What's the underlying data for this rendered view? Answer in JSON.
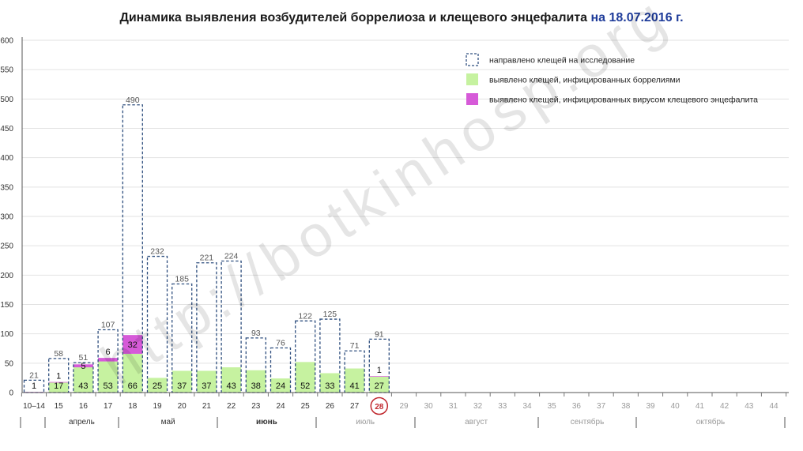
{
  "header": {
    "title_main": "Динамика выявления возбудителей боррелиоза и клещевого энцефалита",
    "title_date": "на 18.07.2016 г."
  },
  "watermark": "http://botkinhosp.org",
  "colors": {
    "total_border": "#2f4f7f",
    "borrelia": "#c6f2a0",
    "encephalitis": "#d65ad8",
    "grid": "#e2e2e2",
    "current_week_circle": "#c0272d",
    "current_week_text": "#c0272d"
  },
  "chart_data": {
    "type": "bar",
    "title": "Динамика выявления возбудителей боррелиоза и клещевого энцефалита на 18.07.2016 г.",
    "ylim": [
      0,
      600
    ],
    "yticks": [
      "0",
      "50",
      "100",
      "150",
      "200",
      "250",
      "300",
      "350",
      "400",
      "450",
      "500",
      "550",
      "600"
    ],
    "categories": [
      "10–14",
      "15",
      "16",
      "17",
      "18",
      "19",
      "20",
      "21",
      "22",
      "23",
      "24",
      "25",
      "26",
      "27",
      "28",
      "29",
      "30",
      "31",
      "32",
      "33",
      "34",
      "35",
      "36",
      "37",
      "38",
      "39",
      "40",
      "41",
      "42",
      "43",
      "44"
    ],
    "current_week": "28",
    "series": [
      {
        "name": "направлено клещей на исследование",
        "style": "dashed-outline",
        "values": [
          21,
          58,
          51,
          107,
          490,
          232,
          185,
          221,
          224,
          93,
          76,
          122,
          125,
          71,
          91,
          null,
          null,
          null,
          null,
          null,
          null,
          null,
          null,
          null,
          null,
          null,
          null,
          null,
          null,
          null,
          null
        ]
      },
      {
        "name": "выявлено клещей, инфицированных боррелиями",
        "style": "fill",
        "values": [
          null,
          17,
          43,
          53,
          66,
          25,
          37,
          37,
          43,
          38,
          24,
          52,
          33,
          41,
          27,
          null,
          null,
          null,
          null,
          null,
          null,
          null,
          null,
          null,
          null,
          null,
          null,
          null,
          null,
          null,
          null
        ]
      },
      {
        "name": "выявлено клещей, инфицированных вирусом клещевого энцефалита",
        "style": "fill",
        "values": [
          1,
          1,
          5,
          6,
          32,
          null,
          null,
          null,
          null,
          null,
          null,
          null,
          null,
          null,
          1,
          null,
          null,
          null,
          null,
          null,
          null,
          null,
          null,
          null,
          null,
          null,
          null,
          null,
          null,
          null,
          null
        ]
      }
    ],
    "months": [
      {
        "label": "апрель",
        "from": 1,
        "to": 3,
        "future": false
      },
      {
        "label": "май",
        "from": 4,
        "to": 7,
        "future": false
      },
      {
        "label": "июнь",
        "from": 8,
        "to": 11,
        "future": false,
        "bold": true
      },
      {
        "label": "июль",
        "from": 12,
        "to": 15,
        "future": true
      },
      {
        "label": "август",
        "from": 16,
        "to": 20,
        "future": true
      },
      {
        "label": "сентябрь",
        "from": 21,
        "to": 24,
        "future": true
      },
      {
        "label": "октябрь",
        "from": 25,
        "to": 30,
        "future": true
      }
    ],
    "legend_position": "top-right",
    "grid": true
  }
}
